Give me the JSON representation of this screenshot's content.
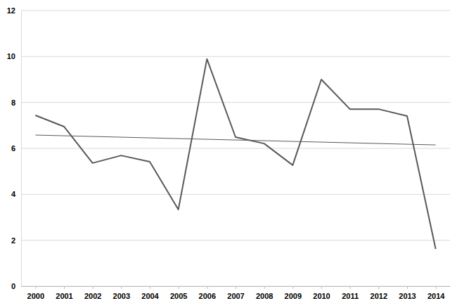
{
  "chart_data": {
    "type": "line",
    "x": [
      2000,
      2001,
      2002,
      2003,
      2004,
      2005,
      2006,
      2007,
      2008,
      2009,
      2010,
      2011,
      2012,
      2013,
      2014
    ],
    "series": [
      {
        "color": "#595959",
        "line_style": "solid",
        "values": [
          7.44,
          6.95,
          5.36,
          5.69,
          5.42,
          3.34,
          9.89,
          6.49,
          6.21,
          5.27,
          9.0,
          7.71,
          7.71,
          7.41,
          1.62
        ]
      },
      {
        "color": "#595959",
        "line_style": "hairline",
        "x": [
          2000,
          2014
        ],
        "values": [
          6.58,
          6.15
        ]
      }
    ],
    "xlim": [
      1999.5,
      2014.5
    ],
    "xticks": [
      2000,
      2001,
      2002,
      2003,
      2004,
      2005,
      2006,
      2007,
      2008,
      2009,
      2010,
      2011,
      2012,
      2013,
      2014
    ],
    "ylim": [
      0,
      12
    ],
    "yticks": [
      0,
      2,
      4,
      6,
      8,
      10,
      12
    ],
    "grid": true
  }
}
